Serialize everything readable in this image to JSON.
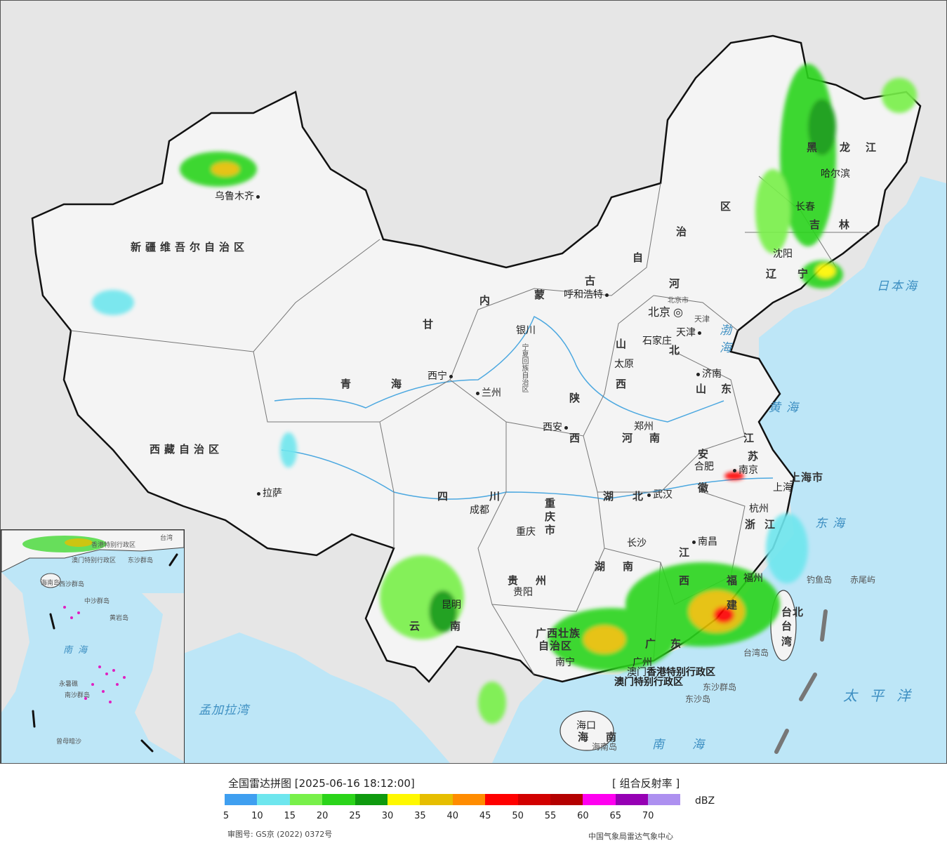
{
  "title": "全国雷达拼图 [2025-06-16 18:12:00]",
  "product": "[ 组合反射率 ]",
  "unit": "dBZ",
  "legend": {
    "colors": [
      "#3f9ff0",
      "#6ee6ee",
      "#78f04a",
      "#2bd41a",
      "#0f9a0f",
      "#fff800",
      "#e6be00",
      "#ff8c00",
      "#ff0000",
      "#d20000",
      "#b40000",
      "#ff00f0",
      "#9600b4",
      "#ad90f0"
    ],
    "ticks": [
      "5",
      "10",
      "15",
      "20",
      "25",
      "30",
      "35",
      "40",
      "45",
      "50",
      "55",
      "60",
      "65",
      "70"
    ]
  },
  "footer": {
    "review_no": "审图号: GS京 (2022) 0372号",
    "credit": "中国气象局雷达气象中心"
  },
  "regions": {
    "xinjiang": "新疆维吾尔自治区",
    "xizang": "西藏自治区",
    "qinghai_1": "青",
    "qinghai_2": "海",
    "gansu": "甘",
    "sichuan_1": "四",
    "sichuan_2": "川",
    "neimeng_1": "内",
    "neimeng_2": "蒙",
    "neimeng_3": "古",
    "neimeng_4": "自",
    "neimeng_5": "治",
    "neimeng_6": "区",
    "heilongjiang_1": "黑",
    "heilongjiang_2": "龙",
    "heilongjiang_3": "江",
    "jilin_1": "吉",
    "jilin_2": "林",
    "liaoning_1": "辽",
    "liaoning_2": "宁",
    "hebei_1": "河",
    "hebei_2": "北",
    "shanxi_1": "山",
    "shanxi_2": "西",
    "shaanxi_1": "陕",
    "shaanxi_2": "西",
    "shandong_1": "山",
    "shandong_2": "东",
    "henan_1": "河",
    "henan_2": "南",
    "jiangsu_1": "江",
    "jiangsu_2": "苏",
    "anhui_1": "安",
    "anhui_2": "徽",
    "shanghai": "上海市",
    "hubei_1": "湖",
    "hubei_2": "北",
    "zhejiang_1": "浙",
    "zhejiang_2": "江",
    "chongqing": "重庆市",
    "jiangxi_1": "江",
    "jiangxi_2": "西",
    "hunan_1": "湖",
    "hunan_2": "南",
    "guizhou_1": "贵",
    "guizhou_2": "州",
    "fujian_1": "福",
    "fujian_2": "建",
    "yunnan_1": "云",
    "yunnan_2": "南",
    "guangxi_1": "广西壮族",
    "guangxi_2": "自治区",
    "guangdong_1": "广",
    "guangdong_2": "东",
    "taiwan_1": "台北",
    "taiwan_2": "台",
    "taiwan_3": "湾",
    "hainan_1": "海",
    "hainan_2": "南",
    "ningxia": "宁夏回族自治区",
    "tianjin": "天津",
    "beijing_city": "北京市",
    "hongkong": "香港特别行政区",
    "macau": "澳门特别行政区"
  },
  "cities": {
    "urumqi": "乌鲁木齐",
    "lhasa": "拉萨",
    "xining": "西宁",
    "lanzhou": "兰州",
    "yinchuan": "银川",
    "hohhot": "呼和浩特",
    "beijing": "北京",
    "tianjin": "天津",
    "shijiazhuang": "石家庄",
    "taiyuan": "太原",
    "jinan": "济南",
    "xian": "西安",
    "zhengzhou": "郑州",
    "hefei": "合肥",
    "nanjing": "南京",
    "shanghai": "上海",
    "hangzhou": "杭州",
    "wuhan": "武汉",
    "chengdu": "成都",
    "chongqing": "重庆",
    "changsha": "长沙",
    "nanchang": "南昌",
    "guiyang": "贵阳",
    "kunming": "昆明",
    "nanning": "南宁",
    "guangzhou": "广州",
    "fuzhou": "福州",
    "haikou": "海口",
    "harbin": "哈尔滨",
    "changchun": "长春",
    "shenyang": "沈阳",
    "aomen": "澳门",
    "taibei": "台北"
  },
  "seas_islands": {
    "bohai": "渤海",
    "huanghai": "黄海",
    "donghai": "东海",
    "nanhai": "南海",
    "taipingyang": "太平洋",
    "riben_hai": "日本海",
    "mengjiala_wan": "孟加拉湾",
    "diaoyu": "钓鱼岛",
    "chiwei": "赤尾屿",
    "taiwan_dao": "台湾岛",
    "hainan_dao": "海南岛",
    "dongsha_qundao": "东沙群岛",
    "dongsha_dao": "东沙岛"
  },
  "inset": {
    "nanhai": "南海",
    "xisha": "西沙群岛",
    "zhongsha": "中沙群岛",
    "nansha": "南沙群岛",
    "huangyan": "黄岩岛",
    "zengmu": "曾母暗沙",
    "yongshu": "永暑礁",
    "hk": "香港特别行政区",
    "macau": "澳门特别行政区",
    "dongsha": "东沙群岛",
    "hainan": "海南岛",
    "taiwan": "台湾"
  }
}
